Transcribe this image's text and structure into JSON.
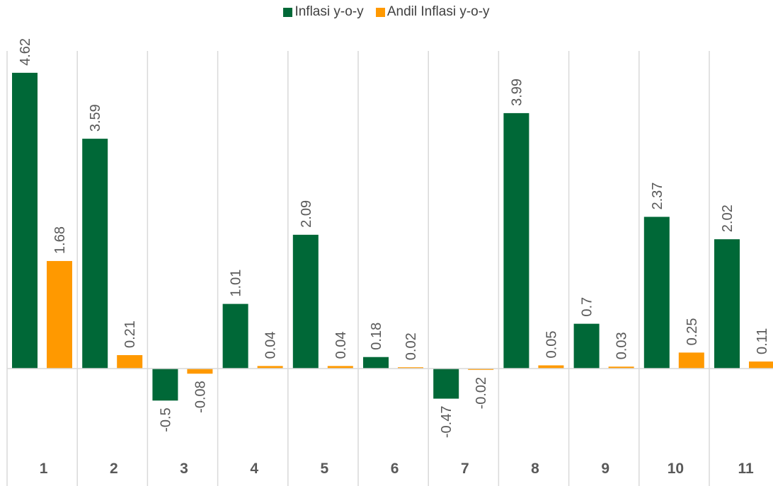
{
  "chart_data": {
    "type": "bar",
    "title": "",
    "xlabel": "",
    "ylabel": "",
    "categories": [
      "1",
      "2",
      "3",
      "4",
      "5",
      "6",
      "7",
      "8",
      "9",
      "10",
      "11"
    ],
    "series": [
      {
        "name": "Inflasi y-o-y",
        "color": "#006837",
        "values": [
          4.62,
          3.59,
          -0.5,
          1.01,
          2.09,
          0.18,
          -0.47,
          3.99,
          0.7,
          2.37,
          2.02
        ]
      },
      {
        "name": "Andil Inflasi y-o-y",
        "color": "#FF9900",
        "values": [
          1.68,
          0.21,
          -0.08,
          0.04,
          0.04,
          0.02,
          -0.02,
          0.05,
          0.03,
          0.25,
          0.11
        ]
      }
    ],
    "ylim": [
      -1.0,
      5.0
    ],
    "grid": "vertical",
    "legend": "top-center"
  }
}
